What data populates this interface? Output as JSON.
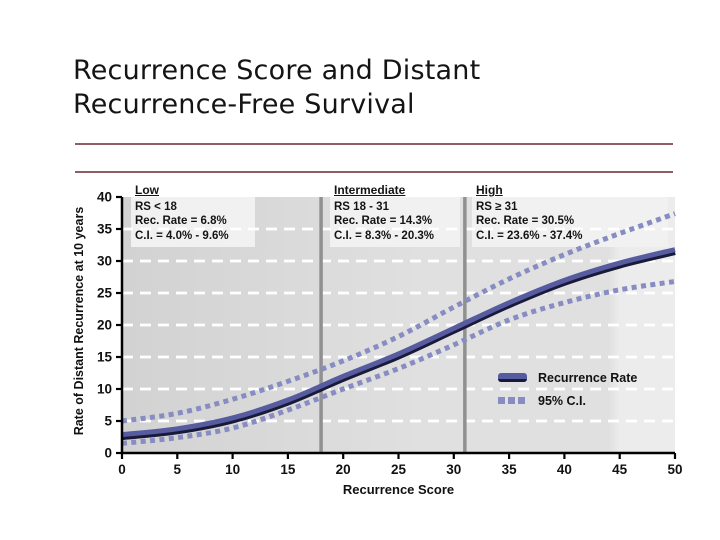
{
  "slide": {
    "title_line1": "Recurrence Score and Distant",
    "title_line2": "Recurrence-Free Survival"
  },
  "colors": {
    "rule": "#8d5f63",
    "plot_bg_left": "#d2d2d2",
    "plot_bg_mid": "#e0e0e0",
    "plot_bg_right": "#ececec",
    "annotation_bg": "#f1f1f1",
    "gridline": "#ffffff",
    "divider": "#909090",
    "axis": "#000000",
    "recurrence_line": "#565c9f",
    "recurrence_line_edge": "#191939",
    "ci_line": "#878cc2",
    "text": "#111111"
  },
  "chart_data": {
    "type": "line",
    "xlabel": "Recurrence Score",
    "ylabel": "Rate of Distant Recurrence at 10 years",
    "xlim": [
      0,
      50
    ],
    "ylim": [
      0,
      40
    ],
    "xticks": [
      0,
      5,
      10,
      15,
      20,
      25,
      30,
      35,
      40,
      45,
      50
    ],
    "yticks": [
      0,
      5,
      10,
      15,
      20,
      25,
      30,
      35,
      40
    ],
    "grid": "horizontal white dashed lines at y = 5..35",
    "dividers_x": [
      18,
      31
    ],
    "x": [
      0,
      5,
      10,
      15,
      20,
      25,
      30,
      35,
      40,
      45,
      50
    ],
    "series": [
      {
        "name": "Recurrence Rate",
        "style": "solid",
        "values": [
          2.8,
          3.7,
          5.4,
          8.2,
          11.9,
          15.4,
          19.4,
          23.4,
          26.9,
          29.6,
          31.7
        ]
      },
      {
        "name": "95% C.I. upper",
        "style": "dotted",
        "values": [
          5.0,
          6.2,
          8.4,
          11.2,
          14.4,
          18.2,
          22.8,
          27.2,
          31.0,
          34.3,
          37.4
        ]
      },
      {
        "name": "95% C.I. lower",
        "style": "dotted",
        "values": [
          1.5,
          2.4,
          3.9,
          6.7,
          10.0,
          13.2,
          16.9,
          20.8,
          23.5,
          25.5,
          26.8
        ]
      }
    ],
    "legend": [
      "Recurrence Rate",
      "95% C.I."
    ],
    "legend_position": "inside lower right",
    "annotations": [
      {
        "heading": "Low",
        "lines": [
          "RS < 18",
          "Rec. Rate = 6.8%",
          "C.I. = 4.0% - 9.6%"
        ]
      },
      {
        "heading": "Intermediate",
        "lines": [
          "RS 18 - 31",
          "Rec. Rate = 14.3%",
          "C.I. = 8.3% - 20.3%"
        ]
      },
      {
        "heading": "High",
        "lines": [
          "RS ≥ 31",
          "Rec. Rate = 30.5%",
          "C.I. = 23.6% - 37.4%"
        ]
      }
    ]
  }
}
